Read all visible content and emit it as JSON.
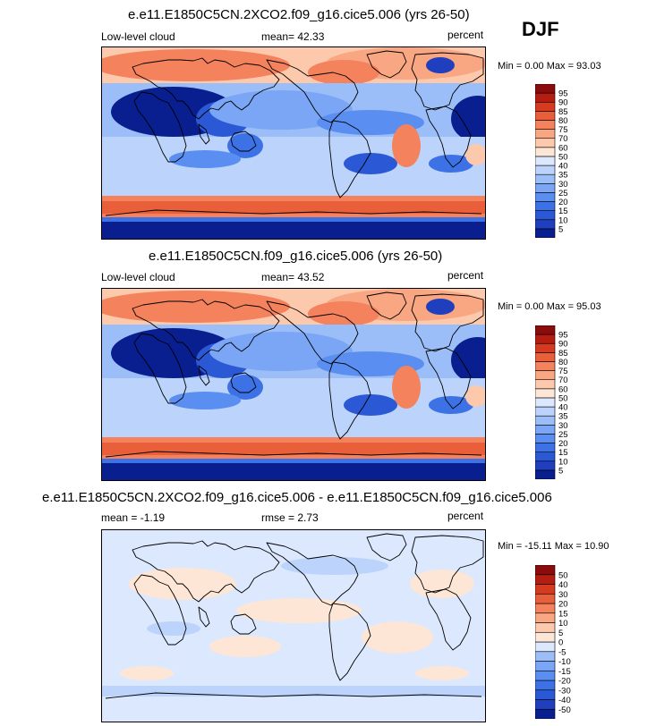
{
  "season": "DJF",
  "panels": [
    {
      "title": "e.e11.E1850C5CN.2XCO2.f09_g16.cice5.006 (yrs 26-50)",
      "left_label": "Low-level cloud",
      "mean_label": "mean=  42.33",
      "units": "percent",
      "minmax": "Min =   0.00 Max =  93.03"
    },
    {
      "title": "e.e11.E1850C5CN.f09_g16.cice5.006 (yrs 26-50)",
      "left_label": "Low-level cloud",
      "mean_label": "mean=  43.52",
      "units": "percent",
      "minmax": "Min =   0.00 Max =  95.03"
    },
    {
      "title": "e.e11.E1850C5CN.2XCO2.f09_g16.cice5.006 - e.e11.E1850C5CN.f09_g16.cice5.006",
      "left_label": "mean =  -1.19",
      "mean_label": "rmse =   2.73",
      "units": "percent",
      "minmax": "Min = -15.11 Max =  10.90"
    }
  ],
  "chart_data": [
    {
      "type": "heatmap",
      "title": "e.e11.E1850C5CN.2XCO2.f09_g16.cice5.006 (yrs 26-50)",
      "variable": "Low-level cloud",
      "units": "percent",
      "season": "DJF",
      "mean": 42.33,
      "min": 0.0,
      "max": 93.03,
      "colorbar_levels": [
        5,
        10,
        15,
        20,
        25,
        30,
        35,
        40,
        50,
        60,
        70,
        75,
        80,
        85,
        90,
        95
      ],
      "colorbar_colors": [
        "#0a1f8f",
        "#1f3fbf",
        "#2b59d6",
        "#3d72e6",
        "#5a8ef0",
        "#7aa6f5",
        "#9bbdf8",
        "#bcd3fb",
        "#dce8fd",
        "#fde6d6",
        "#fcc9ad",
        "#f9a682",
        "#f4825c",
        "#e95f3a",
        "#d63a1f",
        "#b51d10",
        "#8a0c0c"
      ]
    },
    {
      "type": "heatmap",
      "title": "e.e11.E1850C5CN.f09_g16.cice5.006 (yrs 26-50)",
      "variable": "Low-level cloud",
      "units": "percent",
      "season": "DJF",
      "mean": 43.52,
      "min": 0.0,
      "max": 95.03,
      "colorbar_levels": [
        5,
        10,
        15,
        20,
        25,
        30,
        35,
        40,
        50,
        60,
        70,
        75,
        80,
        85,
        90,
        95
      ],
      "colorbar_colors": [
        "#0a1f8f",
        "#1f3fbf",
        "#2b59d6",
        "#3d72e6",
        "#5a8ef0",
        "#7aa6f5",
        "#9bbdf8",
        "#bcd3fb",
        "#dce8fd",
        "#fde6d6",
        "#fcc9ad",
        "#f9a682",
        "#f4825c",
        "#e95f3a",
        "#d63a1f",
        "#b51d10",
        "#8a0c0c"
      ]
    },
    {
      "type": "heatmap",
      "title": "e.e11.E1850C5CN.2XCO2.f09_g16.cice5.006 - e.e11.E1850C5CN.f09_g16.cice5.006",
      "units": "percent",
      "season": "DJF",
      "mean": -1.19,
      "rmse": 2.73,
      "min": -15.11,
      "max": 10.9,
      "colorbar_levels": [
        -50,
        -40,
        -30,
        -20,
        -15,
        -10,
        -5,
        0,
        5,
        10,
        15,
        20,
        30,
        40,
        50
      ],
      "colorbar_colors": [
        "#0a1f8f",
        "#1f3fbf",
        "#2b59d6",
        "#3d72e6",
        "#5a8ef0",
        "#7aa6f5",
        "#9bbdf8",
        "#dce8fd",
        "#fde6d6",
        "#fcc9ad",
        "#f9a682",
        "#f4825c",
        "#e95f3a",
        "#d63a1f",
        "#b51d10",
        "#8a0c0c"
      ]
    }
  ]
}
